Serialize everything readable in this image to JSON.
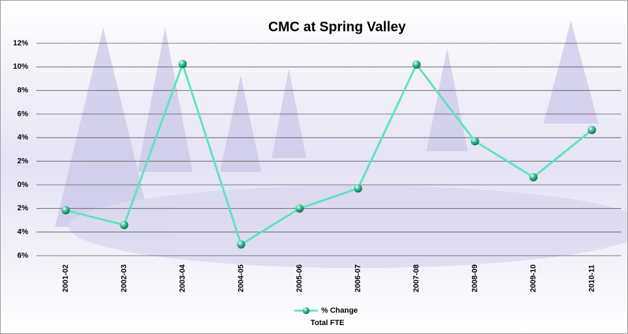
{
  "chart_data": {
    "type": "line",
    "title": "CMC at Spring Valley",
    "categories": [
      "2001-02",
      "2002-03",
      "2003-04",
      "2004-05",
      "2005-06",
      "2006-07",
      "2007-08",
      "2008-09",
      "2009-10",
      "2010-11"
    ],
    "series": [
      {
        "name": "% Change",
        "color": "#5fe3be",
        "values": [
          -2.15,
          -3.4,
          10.25,
          -5.05,
          -2.0,
          -0.3,
          10.2,
          3.7,
          0.65,
          4.65
        ]
      }
    ],
    "legend_note": "Total FTE",
    "ylim": [
      -6,
      12
    ],
    "yticks": [
      {
        "value": -6,
        "label": "6%"
      },
      {
        "value": -4,
        "label": "4%"
      },
      {
        "value": -2,
        "label": "2%"
      },
      {
        "value": 0,
        "label": "0%"
      },
      {
        "value": 2,
        "label": "2%"
      },
      {
        "value": 4,
        "label": "4%"
      },
      {
        "value": 6,
        "label": "6%"
      },
      {
        "value": 8,
        "label": "8%"
      },
      {
        "value": 10,
        "label": "10%"
      },
      {
        "value": 12,
        "label": "12%"
      }
    ],
    "negative_tick_color": "#c00000",
    "grid": true,
    "legend": "bottom"
  }
}
